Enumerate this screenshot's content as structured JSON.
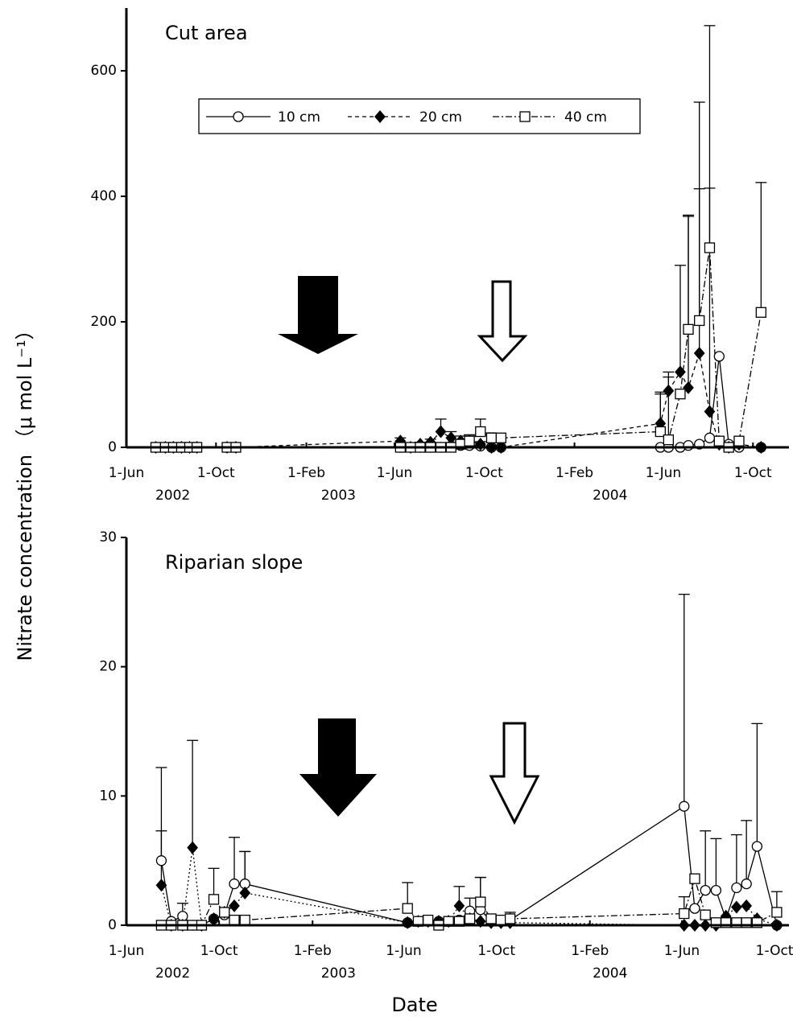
{
  "y_label": "Nitrate concentration （μ mol L⁻¹）",
  "x_label": "Date",
  "chart_data": [
    {
      "type": "line",
      "title": "Cut area",
      "legend": true,
      "x": [
        "2002-07-11",
        "2002-07-24",
        "2002-08-04",
        "2002-08-15",
        "2002-08-26",
        "2002-09-05",
        "2002-10-16",
        "2002-10-28",
        "2003-06-09",
        "2003-06-23",
        "2003-07-06",
        "2003-07-20",
        "2003-08-03",
        "2003-08-17",
        "2003-08-30",
        "2003-09-11",
        "2003-09-26",
        "2003-10-11",
        "2003-10-24",
        "2004-05-28",
        "2004-06-08",
        "2004-06-24",
        "2004-07-05",
        "2004-07-20",
        "2004-08-03",
        "2004-08-16",
        "2004-08-29",
        "2004-09-12",
        "2004-10-12"
      ],
      "xlim": [
        "2002-06-01",
        "2004-11-19"
      ],
      "xticks": [
        {
          "value": "2002-06-01",
          "label": "1-Jun"
        },
        {
          "value": "2002-10-01",
          "label": "1-Oct"
        },
        {
          "value": "2003-02-01",
          "label": "1-Feb"
        },
        {
          "value": "2003-06-01",
          "label": "1-Jun"
        },
        {
          "value": "2003-10-01",
          "label": "1-Oct"
        },
        {
          "value": "2004-02-01",
          "label": "1-Feb"
        },
        {
          "value": "2004-06-01",
          "label": "1-Jun"
        },
        {
          "value": "2004-10-01",
          "label": "1-Oct"
        }
      ],
      "year_labels": [
        "2002",
        "2003",
        "2004"
      ],
      "ylim": [
        0,
        700
      ],
      "yticks": [
        0,
        200,
        400,
        600
      ],
      "series": [
        {
          "name": "10 cm",
          "color": "#000000",
          "marker": "circle",
          "dash": "none",
          "values": [
            0,
            0,
            0,
            0,
            0,
            0,
            0,
            0,
            0,
            0,
            0,
            0,
            0,
            2,
            3,
            3,
            2,
            0,
            0,
            0,
            0,
            0,
            3,
            5,
            15,
            145,
            5,
            0,
            0
          ],
          "errors": [
            null,
            null,
            null,
            null,
            null,
            null,
            null,
            null,
            null,
            null,
            null,
            null,
            null,
            null,
            null,
            null,
            null,
            null,
            null,
            null,
            null,
            null,
            null,
            null,
            null,
            null,
            null,
            null,
            null
          ]
        },
        {
          "name": "20 cm",
          "color": "#000000",
          "marker": "diamond",
          "dash": "5,4",
          "values": [
            0,
            0,
            0,
            0,
            0,
            0,
            0,
            0,
            10,
            0,
            5,
            8,
            25,
            15,
            10,
            10,
            5,
            0,
            0,
            38,
            90,
            120,
            95,
            150,
            57,
            5,
            0,
            5,
            0
          ],
          "errors": [
            null,
            null,
            null,
            null,
            null,
            null,
            null,
            null,
            5,
            null,
            3,
            5,
            20,
            10,
            8,
            8,
            4,
            null,
            null,
            50,
            30,
            170,
            275,
            400,
            615,
            null,
            null,
            null,
            null
          ]
        },
        {
          "name": "40 cm",
          "color": "#000000",
          "marker": "square",
          "dash": "8,3,2,3",
          "values": [
            0,
            0,
            0,
            0,
            0,
            0,
            0,
            0,
            0,
            0,
            0,
            0,
            0,
            0,
            5,
            10,
            25,
            15,
            15,
            25,
            12,
            85,
            188,
            202,
            318,
            10,
            0,
            10,
            215
          ],
          "errors": [
            null,
            null,
            null,
            null,
            null,
            null,
            null,
            null,
            null,
            null,
            null,
            null,
            null,
            null,
            5,
            10,
            20,
            8,
            null,
            60,
            100,
            null,
            180,
            210,
            95,
            null,
            null,
            null,
            207
          ]
        }
      ]
    },
    {
      "type": "line",
      "title": "Riparian slope",
      "legend": false,
      "x": [
        "2002-07-17",
        "2002-07-30",
        "2002-08-14",
        "2002-08-27",
        "2002-09-08",
        "2002-09-24",
        "2002-10-08",
        "2002-10-21",
        "2002-11-04",
        "2003-06-06",
        "2003-06-20",
        "2003-07-03",
        "2003-07-17",
        "2003-07-30",
        "2003-08-13",
        "2003-08-27",
        "2003-09-10",
        "2003-09-24",
        "2003-10-07",
        "2003-10-19",
        "2004-06-04",
        "2004-06-18",
        "2004-07-02",
        "2004-07-16",
        "2004-07-29",
        "2004-08-12",
        "2004-08-25",
        "2004-09-08",
        "2004-10-04"
      ],
      "xlim": [
        "2002-06-01",
        "2004-10-20"
      ],
      "xticks": [
        {
          "value": "2002-06-01",
          "label": "1-Jun"
        },
        {
          "value": "2002-10-01",
          "label": "1-Oct"
        },
        {
          "value": "2003-02-01",
          "label": "1-Feb"
        },
        {
          "value": "2003-06-01",
          "label": "1-Jun"
        },
        {
          "value": "2003-10-01",
          "label": "1-Oct"
        },
        {
          "value": "2004-02-01",
          "label": "1-Feb"
        },
        {
          "value": "2004-06-01",
          "label": "1-Jun"
        },
        {
          "value": "2004-10-01",
          "label": "1-Oct"
        }
      ],
      "year_labels": [
        "2002",
        "2003",
        "2004"
      ],
      "ylim": [
        0,
        30
      ],
      "yticks": [
        0,
        10,
        20,
        30
      ],
      "series": [
        {
          "color": "#000000",
          "marker": "circle",
          "dash": "none",
          "values": [
            5,
            0.3,
            0.7,
            0,
            0,
            0.5,
            0.8,
            3.2,
            3.2,
            0.2,
            0.3,
            0.3,
            0.3,
            0.3,
            0.4,
            1.1,
            1.2,
            0.3,
            0.3,
            0.4,
            9.2,
            1.3,
            2.7,
            2.7,
            0.5,
            2.9,
            3.2,
            6.1,
            0
          ],
          "errors": [
            7.2,
            null,
            1,
            null,
            null,
            null,
            null,
            3.6,
            2.5,
            null,
            null,
            null,
            null,
            null,
            null,
            1,
            2.5,
            null,
            null,
            0.6,
            16.4,
            null,
            4.6,
            4,
            null,
            4.1,
            4.9,
            9.5,
            null
          ]
        },
        {
          "color": "#000000",
          "marker": "diamond",
          "dash": "2,3",
          "values": [
            3.1,
            0,
            0,
            6,
            0,
            0.5,
            1,
            1.5,
            2.5,
            0.2,
            0.3,
            0.3,
            0.3,
            0.3,
            1.5,
            0.5,
            0.3,
            0.2,
            0.2,
            0.2,
            0,
            0,
            0,
            0,
            0.7,
            1.4,
            1.5,
            0.5,
            0
          ],
          "errors": [
            4.2,
            null,
            null,
            8.3,
            null,
            null,
            null,
            null,
            3.2,
            null,
            null,
            null,
            null,
            null,
            1.5,
            null,
            null,
            null,
            null,
            null,
            null,
            null,
            null,
            null,
            null,
            null,
            null,
            null,
            null
          ]
        },
        {
          "color": "#000000",
          "marker": "square",
          "dash": "8,3,2,3",
          "values": [
            0,
            0,
            0,
            0,
            0,
            2,
            1,
            0.4,
            0.4,
            1.3,
            0.3,
            0.4,
            0,
            0.3,
            0.3,
            0.5,
            1.8,
            0.5,
            0.4,
            0.5,
            0.9,
            3.6,
            0.8,
            0.2,
            0.2,
            0.2,
            0.2,
            0.2,
            1
          ],
          "errors": [
            null,
            null,
            null,
            null,
            null,
            2.4,
            null,
            null,
            null,
            2,
            null,
            null,
            null,
            null,
            null,
            null,
            1.9,
            null,
            null,
            null,
            1.3,
            null,
            null,
            null,
            null,
            null,
            null,
            null,
            1.6
          ]
        }
      ]
    }
  ]
}
